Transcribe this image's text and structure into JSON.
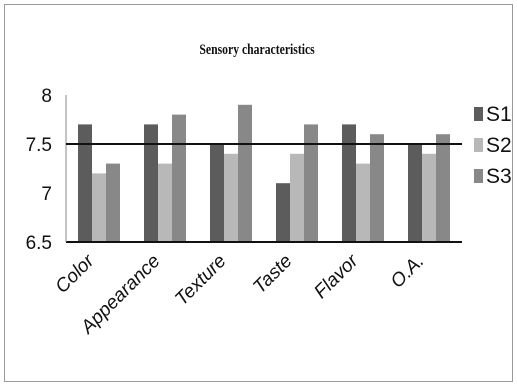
{
  "chart_data": {
    "type": "bar",
    "title": "Sensory characteristics",
    "xlabel": "",
    "ylabel": "",
    "categories": [
      "Color",
      "Appearance",
      "Texture",
      "Taste",
      "Flavor",
      "O.A."
    ],
    "series": [
      {
        "name": "S1",
        "color": "#5c5c5c",
        "values": [
          7.7,
          7.7,
          7.5,
          7.1,
          7.7,
          7.5
        ]
      },
      {
        "name": "S2",
        "color": "#b8b8b8",
        "values": [
          7.2,
          7.3,
          7.4,
          7.4,
          7.3,
          7.4
        ]
      },
      {
        "name": "S3",
        "color": "#888888",
        "values": [
          7.3,
          7.8,
          7.9,
          7.7,
          7.6,
          7.6
        ]
      }
    ],
    "ylim": [
      6.5,
      8
    ],
    "yticks": [
      "8",
      "7.5",
      "7",
      "6.5"
    ],
    "ytick_values": [
      8,
      7.5,
      7,
      6.5
    ],
    "reference_line": 7.5,
    "legend_position": "right",
    "grid": false
  }
}
